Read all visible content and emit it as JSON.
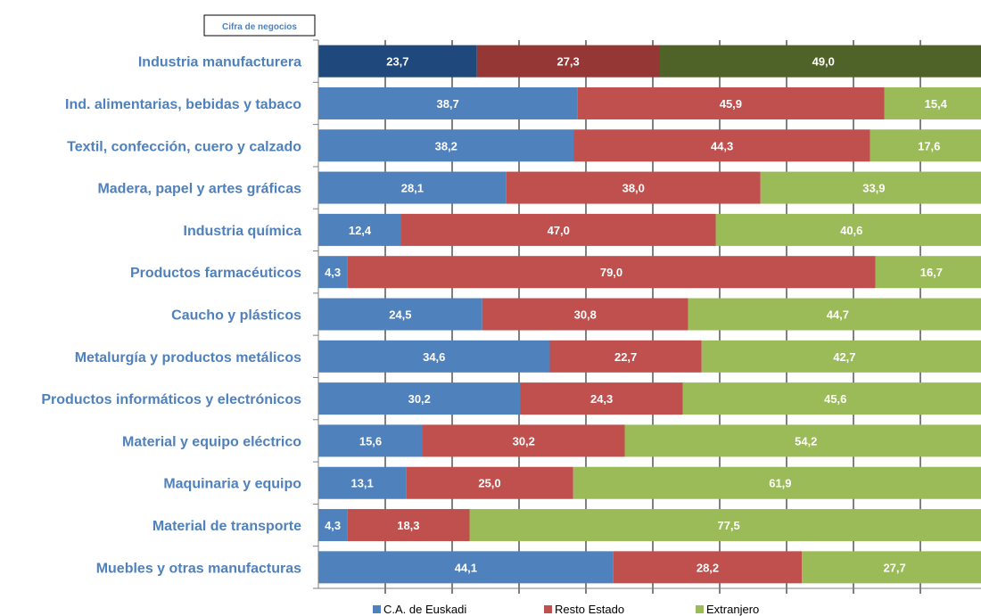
{
  "chart_data": {
    "type": "bar",
    "orientation": "horizontal",
    "stacked": true,
    "title": "",
    "note_box": "Cifra de negocios",
    "xlim": [
      0,
      100
    ],
    "grid": true,
    "legend_position": "bottom",
    "categories": [
      "Industria manufacturera",
      "Ind. alimentarias, bebidas y tabaco",
      "Textil, confección, cuero y calzado",
      "Madera, papel y artes gráficas",
      "Industria química",
      "Productos farmacéuticos",
      "Caucho y plásticos",
      "Metalurgía y productos metálicos",
      "Productos informáticos y electrónicos",
      "Material y equipo eléctrico",
      "Maquinaria y equipo",
      "Material de transporte",
      "Muebles y otras manufacturas"
    ],
    "series": [
      {
        "name": "C.A. de Euskadi",
        "color": "#4f81bd",
        "highlight_color": "#1f497d",
        "values": [
          23.7,
          38.7,
          38.2,
          28.1,
          12.4,
          4.3,
          24.5,
          34.6,
          30.2,
          15.6,
          13.1,
          4.3,
          44.1
        ],
        "labels": [
          "23,7",
          "38,7",
          "38,2",
          "28,1",
          "12,4",
          "4,3",
          "24,5",
          "34,6",
          "30,2",
          "15,6",
          "13,1",
          "4,3",
          "44,1"
        ]
      },
      {
        "name": "Resto Estado",
        "color": "#c0504d",
        "highlight_color": "#953735",
        "values": [
          27.3,
          45.9,
          44.3,
          38.0,
          47.0,
          79.0,
          30.8,
          22.7,
          24.3,
          30.2,
          25.0,
          18.3,
          28.2
        ],
        "labels": [
          "27,3",
          "45,9",
          "44,3",
          "38,0",
          "47,0",
          "79,0",
          "30,8",
          "22,7",
          "24,3",
          "30,2",
          "25,0",
          "18,3",
          "28,2"
        ]
      },
      {
        "name": "Extranjero",
        "color": "#9bbb59",
        "highlight_color": "#4f6228",
        "values": [
          49.0,
          15.4,
          17.6,
          33.9,
          40.6,
          16.7,
          44.7,
          42.7,
          45.6,
          54.2,
          61.9,
          77.5,
          27.7
        ],
        "labels": [
          "49,0",
          "15,4",
          "17,6",
          "33,9",
          "40,6",
          "16,7",
          "44,7",
          "42,7",
          "45,6",
          "54,2",
          "61,9",
          "77,5",
          "27,7"
        ]
      }
    ],
    "highlighted_category_index": 0
  }
}
